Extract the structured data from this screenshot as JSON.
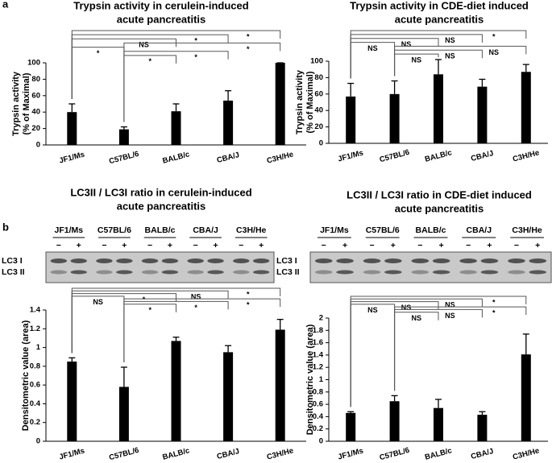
{
  "figure": {
    "panel_labels": [
      "a",
      "b"
    ],
    "blots": [
      {
        "strains": [
          "JF1/Ms",
          "C57BL/6",
          "BALB/c",
          "CBA/J",
          "C3H/He"
        ],
        "signs": [
          "−",
          "+"
        ],
        "bands": [
          "LC3 I",
          "LC3 II"
        ]
      },
      {
        "strains": [
          "JF1/Ms",
          "C57BL/6",
          "BALB/c",
          "CBA/J",
          "C3H/He"
        ],
        "signs": [
          "−",
          "+"
        ],
        "bands": [
          "LC3 I",
          "LC3 II"
        ]
      }
    ]
  },
  "chart_data": [
    {
      "type": "bar",
      "title": [
        "Trypsin activity in cerulein-induced",
        "acute pancreatitis"
      ],
      "y_label": [
        "Trypsin activity",
        "(% of Maximal)"
      ],
      "categories": [
        "JF1/Ms",
        "C57BL/6",
        "BALB/c",
        "CBA/J",
        "C3H/He"
      ],
      "values": [
        40,
        19,
        41,
        54,
        100
      ],
      "errors": [
        10,
        3,
        9,
        12,
        0
      ],
      "color": "#000000",
      "ylim": [
        0,
        100
      ],
      "yticks": [
        0,
        20,
        40,
        60,
        80,
        100
      ],
      "comparisons": [
        {
          "from": 0,
          "to": 4,
          "label": "*"
        },
        {
          "from": 0,
          "to": 3,
          "label": "*"
        },
        {
          "from": 0,
          "to": 2,
          "label": "NS"
        },
        {
          "from": 1,
          "to": 4,
          "label": "*"
        },
        {
          "from": 0,
          "to": 1,
          "label": "*"
        },
        {
          "from": 1,
          "to": 3,
          "label": "*"
        },
        {
          "from": 1,
          "to": 2,
          "label": "*"
        }
      ]
    },
    {
      "type": "bar",
      "title": [
        "Trypsin activity in CDE-diet induced",
        "acute pancreatitis"
      ],
      "y_label": [
        "Trypsin activity",
        "(% of Maximal)"
      ],
      "categories": [
        "JF1/Ms",
        "C57BL/6",
        "BALB/c",
        "CBA/J",
        "C3H/He"
      ],
      "values": [
        57,
        60,
        84,
        69,
        87
      ],
      "errors": [
        16,
        16,
        18,
        9,
        9
      ],
      "color": "#000000",
      "ylim": [
        0,
        100
      ],
      "yticks": [
        0,
        20,
        40,
        60,
        80,
        100
      ],
      "comparisons": [
        {
          "from": 0,
          "to": 4,
          "label": "*"
        },
        {
          "from": 0,
          "to": 3,
          "label": "NS"
        },
        {
          "from": 0,
          "to": 2,
          "label": "NS"
        },
        {
          "from": 0,
          "to": 1,
          "label": "NS"
        },
        {
          "from": 1,
          "to": 4,
          "label": "NS"
        },
        {
          "from": 1,
          "to": 3,
          "label": "NS"
        },
        {
          "from": 1,
          "to": 2,
          "label": "NS"
        }
      ]
    },
    {
      "type": "bar",
      "title": [
        "LC3II / LC3I ratio in cerulein-induced",
        "acute pancreatitis"
      ],
      "y_label": [
        "Densitometric value (area)"
      ],
      "categories": [
        "JF1/Ms",
        "C57BL/6",
        "BALB/c",
        "CBA/J",
        "C3H/He"
      ],
      "values": [
        0.85,
        0.58,
        1.07,
        0.95,
        1.19
      ],
      "errors": [
        0.04,
        0.21,
        0.04,
        0.07,
        0.11
      ],
      "color": "#000000",
      "ylim": [
        0,
        1.4
      ],
      "yticks": [
        0,
        0.2,
        0.4,
        0.6,
        0.8,
        1,
        1.2,
        1.4
      ],
      "comparisons": [
        {
          "from": 0,
          "to": 4,
          "label": "*"
        },
        {
          "from": 0,
          "to": 3,
          "label": "NS"
        },
        {
          "from": 0,
          "to": 2,
          "label": "*"
        },
        {
          "from": 0,
          "to": 1,
          "label": "NS"
        },
        {
          "from": 1,
          "to": 4,
          "label": "*"
        },
        {
          "from": 1,
          "to": 3,
          "label": "*"
        },
        {
          "from": 1,
          "to": 2,
          "label": "*"
        }
      ]
    },
    {
      "type": "bar",
      "title": [
        "LC3II / LC3I ratio in CDE-diet induced",
        "acute pancreatitis"
      ],
      "y_label": [
        "Densitometric value (area)"
      ],
      "categories": [
        "JF1/Ms",
        "C57BL/6",
        "BALB/c",
        "CBA/J",
        "C3H/He"
      ],
      "values": [
        0.46,
        0.65,
        0.54,
        0.43,
        1.41
      ],
      "errors": [
        0.02,
        0.09,
        0.14,
        0.05,
        0.33
      ],
      "color": "#000000",
      "ylim": [
        0,
        2
      ],
      "yticks": [
        0,
        0.2,
        0.4,
        0.6,
        0.8,
        1,
        1.2,
        1.4,
        1.6,
        1.8,
        2
      ],
      "comparisons": [
        {
          "from": 0,
          "to": 4,
          "label": "*"
        },
        {
          "from": 0,
          "to": 3,
          "label": "NS"
        },
        {
          "from": 0,
          "to": 2,
          "label": "NS"
        },
        {
          "from": 0,
          "to": 1,
          "label": "NS"
        },
        {
          "from": 1,
          "to": 4,
          "label": "*"
        },
        {
          "from": 1,
          "to": 3,
          "label": "NS"
        },
        {
          "from": 1,
          "to": 2,
          "label": "NS"
        }
      ]
    }
  ]
}
